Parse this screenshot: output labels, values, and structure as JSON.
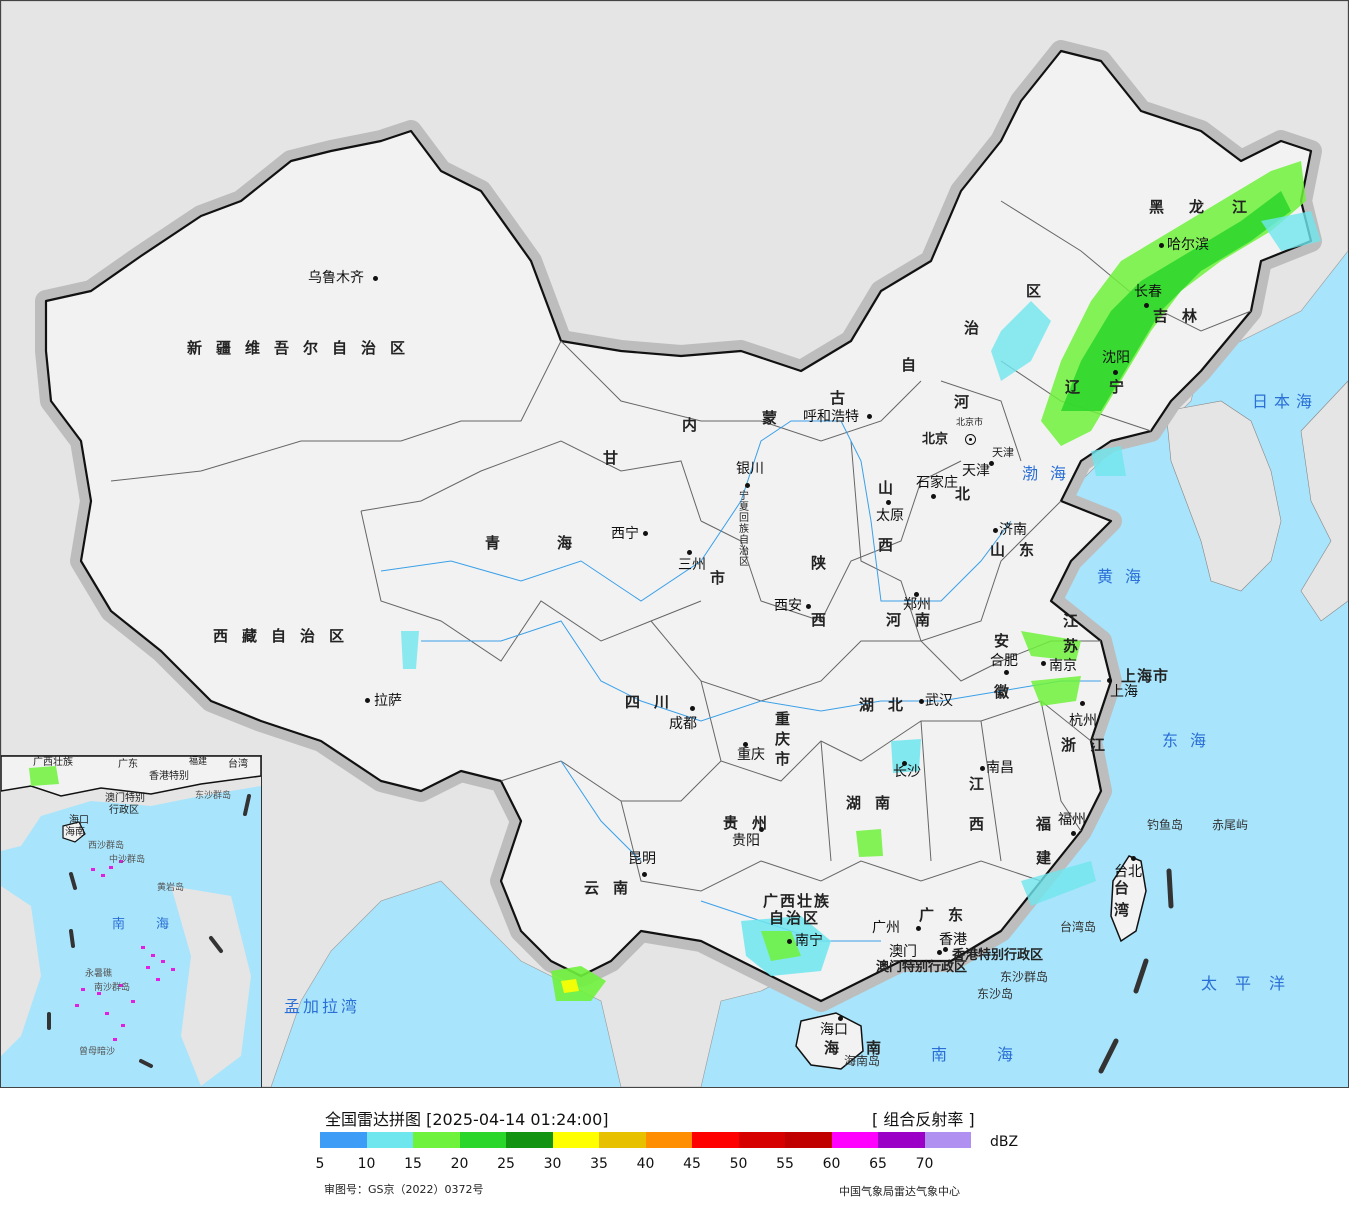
{
  "title": "全国雷达拼图 [2025-04-14 01:24:00]",
  "product": "[ 组合反射率 ]",
  "unit": "dBZ",
  "legend": {
    "ticks": [
      "5",
      "10",
      "15",
      "20",
      "25",
      "30",
      "35",
      "40",
      "45",
      "50",
      "55",
      "60",
      "65",
      "70"
    ],
    "colors": [
      "#3d9cf5",
      "#6fe6ee",
      "#6ef23b",
      "#2bd62b",
      "#129412",
      "#ffff00",
      "#e7c100",
      "#ff8f00",
      "#ff0000",
      "#d60000",
      "#c00000",
      "#ff00ff",
      "#9a00c6",
      "#b090f0"
    ]
  },
  "approval": "审图号：GS京（2022）0372号",
  "credit": "中国气象局雷达气象中心",
  "colors": {
    "sea": "#a8e4fb",
    "land": "#f2f2f2",
    "neighbor": "#e5e5e5",
    "border": "#111111"
  },
  "provinces": {
    "xinjiang": "新疆维吾尔自治区",
    "tibet": "西藏自治区",
    "qinghai_1": "青",
    "qinghai_2": "海",
    "gansu": "甘",
    "neimenggu_1": "内",
    "neimenggu_2": "蒙",
    "neimenggu_3": "古",
    "neimenggu_4": "自",
    "neimenggu_5": "治",
    "neimenggu_6": "区",
    "heilongjiang_1": "黑",
    "heilongjiang_2": "龙",
    "heilongjiang_3": "江",
    "jilin": "吉林",
    "liaoning_1": "辽",
    "liaoning_2": "宁",
    "hebei_1": "河",
    "hebei_2": "北",
    "shanxi_1": "山",
    "shanxi_2": "西",
    "shandong": "山东",
    "shaanxi_1": "陕",
    "shaanxi_2": "西",
    "henan": "河南",
    "sichuan": "四川",
    "chongqing": "重庆市",
    "hubei": "湖北",
    "anhui_1": "安",
    "anhui_2": "徽",
    "jiangsu_1": "江",
    "jiangsu_2": "苏",
    "zhejiang": "浙江",
    "jiangxi_1": "江",
    "jiangxi_2": "西",
    "hunan": "湖南",
    "guizhou": "贵州",
    "yunnan": "云南",
    "guangxi_1": "广西壮族",
    "guangxi_2": "自治区",
    "guangdong": "广东",
    "fujian_1": "福",
    "fujian_2": "建",
    "hainan_1": "海",
    "hainan_2": "南",
    "taiwan_1": "台",
    "taiwan_2": "湾",
    "ningxia": "宁夏回族自治区",
    "gansu_city": "市",
    "shanghai": "上海市",
    "hk": "香港特别行政区",
    "macau": "澳门特别行政区",
    "beijing_prov": "北京",
    "tianjin_prov": "天津"
  },
  "cities": {
    "urumqi": "乌鲁木齐",
    "lhasa": "拉萨",
    "xining": "西宁",
    "lanzhou": "三州",
    "yinchuan": "银川",
    "hohhot": "呼和浩特",
    "harbin": "哈尔滨",
    "changchun": "长春",
    "shenyang": "沈阳",
    "beijing": "北京",
    "beijing_small": "北京市",
    "tianjin": "天津",
    "shijiazhuang": "石家庄",
    "taiyuan": "太原",
    "jinan": "济南",
    "zhengzhou": "郑州",
    "xian": "西安",
    "chengdu": "成都",
    "chongqing": "重庆",
    "wuhan": "武汉",
    "hefei": "合肥",
    "nanjing": "南京",
    "shanghai": "上海",
    "hangzhou": "杭州",
    "nanchang": "南昌",
    "changsha": "长沙",
    "guiyang": "贵阳",
    "kunming": "昆明",
    "nanning": "南宁",
    "guangzhou": "广州",
    "macau": "澳门",
    "hongkong": "香港",
    "fuzhou": "福州",
    "taipei": "台北",
    "haikou": "海口"
  },
  "seas": {
    "japan_sea": "日本海",
    "bohai": "渤海",
    "yellow_sea": "黄海",
    "east_sea": "东海",
    "pacific": "太平洋",
    "south_sea": "南海",
    "bay_bengal": "孟加拉湾",
    "hainan_island": "海南岛"
  },
  "islands": {
    "diaoyu": "钓鱼岛",
    "chiwei": "赤尾屿",
    "taiwan_island": "台湾岛",
    "dongsha_islands": "东沙群岛",
    "dongsha_island": "东沙岛"
  },
  "inset": {
    "guangxi": "广西壮族",
    "guangdong": "广东",
    "fujian": "福建",
    "taiwan": "台湾",
    "hk": "香港特别",
    "macau": "澳门特别",
    "region": "行政区",
    "hainan": "海口",
    "hainan2": "海南",
    "xisha": "西沙群岛",
    "zhongsha": "中沙群岛",
    "huangyan": "黄岩岛",
    "nansha": "南沙群岛",
    "yongshu": "永暑礁",
    "zengmu": "曾母暗沙",
    "south_sea_1": "南",
    "south_sea_2": "海",
    "dongsha": "东沙群岛"
  }
}
